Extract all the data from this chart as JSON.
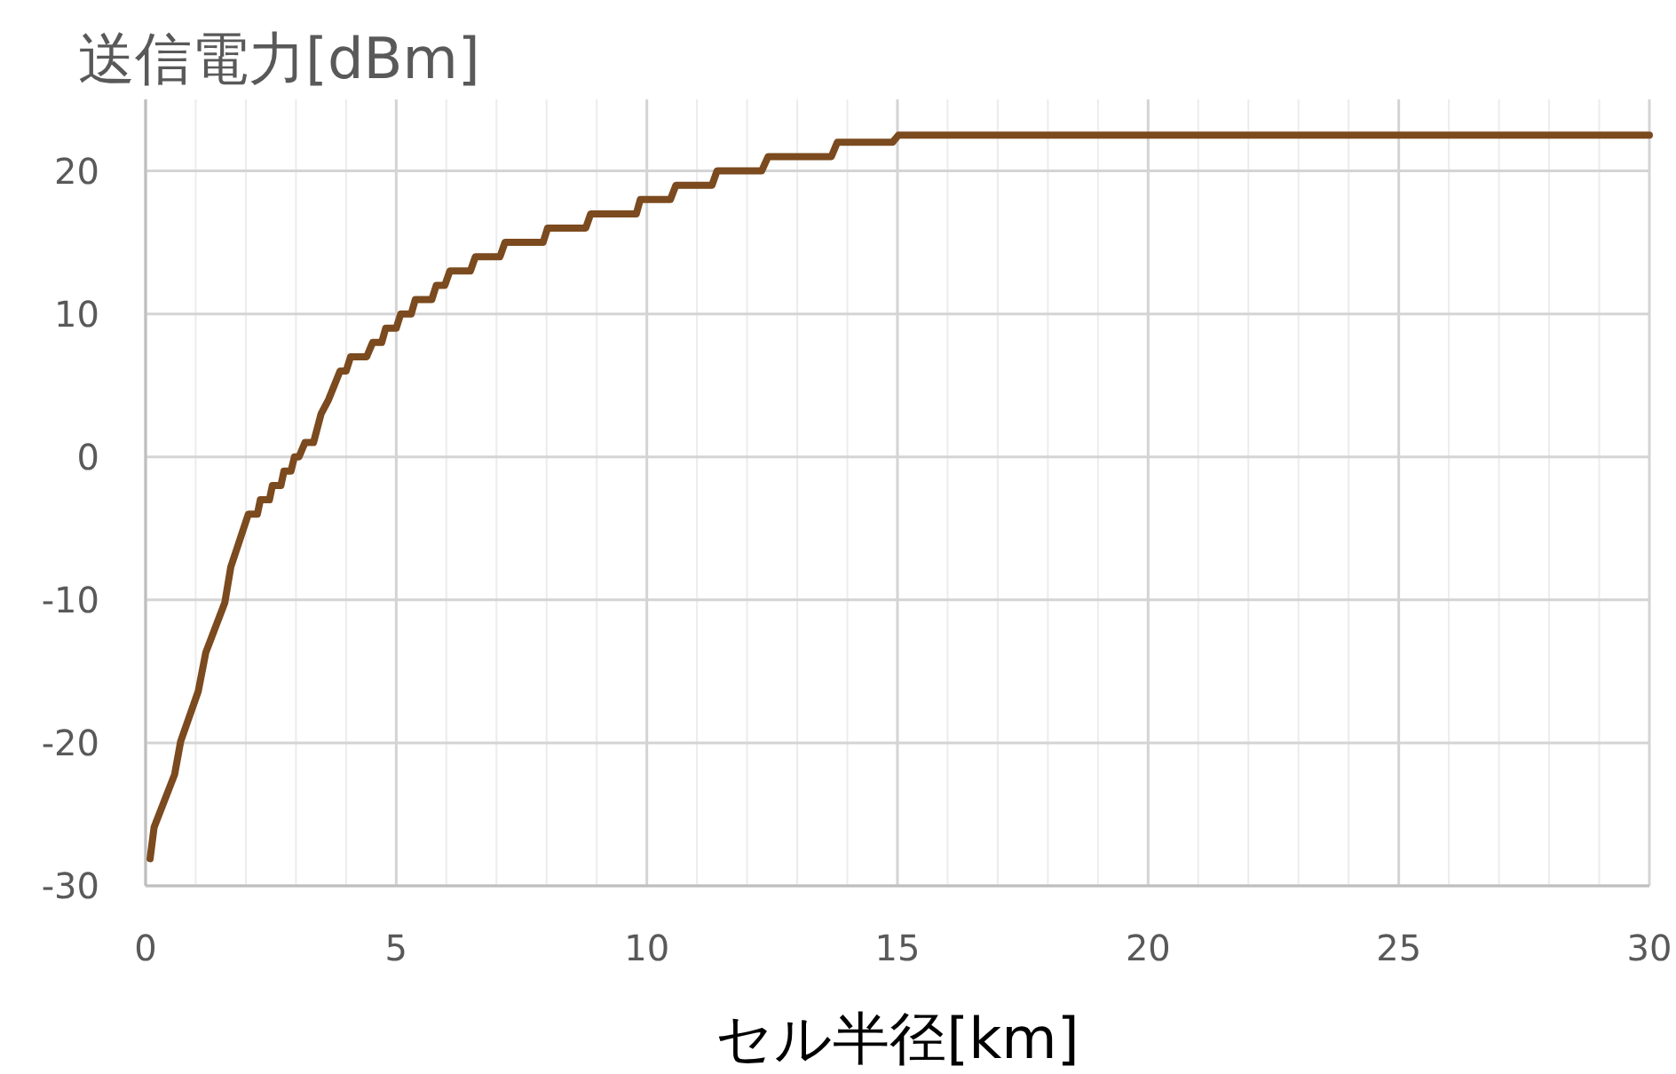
{
  "chart_data": {
    "type": "line",
    "ylabel": "送信電力[dBm]",
    "xlabel": "セル半径[km]",
    "xlim": [
      0,
      30
    ],
    "xticks": [
      0,
      5,
      10,
      15,
      20,
      25,
      30
    ],
    "ylim": [
      -30,
      25
    ],
    "yticks": [
      -30,
      -20,
      -10,
      0,
      10,
      20
    ],
    "grid": true,
    "marker": "none",
    "line_style": "solid",
    "series": [
      {
        "color": "#7b4a1e",
        "x": [
          0.09,
          0.17,
          0.58,
          0.7,
          1.05,
          1.2,
          1.58,
          1.7,
          2.05,
          2.23,
          2.29,
          2.47,
          2.53,
          2.7,
          2.76,
          2.9,
          2.97,
          3.06,
          3.18,
          3.35,
          3.5,
          3.65,
          3.88,
          4.0,
          4.09,
          4.41,
          4.53,
          4.71,
          4.79,
          5.0,
          5.09,
          5.3,
          5.38,
          5.71,
          5.8,
          5.97,
          6.07,
          6.48,
          6.58,
          7.07,
          7.17,
          7.93,
          8.02,
          8.78,
          8.88,
          9.79,
          9.87,
          10.47,
          10.58,
          11.3,
          11.4,
          12.29,
          12.42,
          13.68,
          13.8,
          14.9,
          15.02,
          30
        ],
        "values": [
          -28.1,
          -25.9,
          -22.2,
          -19.9,
          -16.4,
          -13.7,
          -10.2,
          -7.7,
          -4.0,
          -4,
          -3,
          -3,
          -2,
          -2,
          -1,
          -1,
          0,
          0,
          1,
          1,
          3,
          4,
          6,
          6,
          7,
          7,
          8,
          8,
          9,
          9,
          10,
          10,
          11,
          11,
          12,
          12,
          13,
          13,
          14,
          14,
          15,
          15,
          16,
          16,
          17,
          17,
          18,
          18,
          19,
          19,
          20,
          20,
          21,
          21,
          22,
          22,
          22.5,
          22.5
        ]
      }
    ]
  }
}
